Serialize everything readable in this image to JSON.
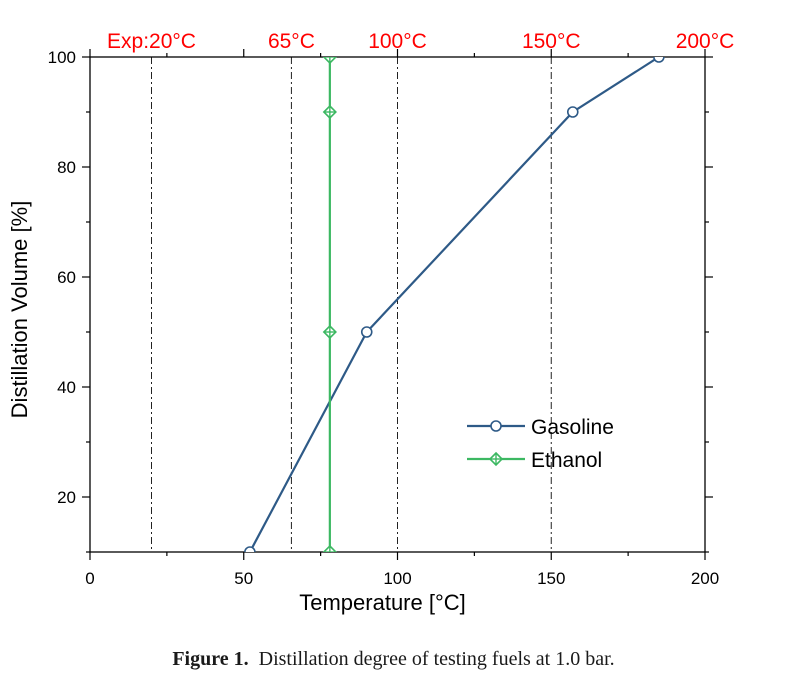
{
  "chart_data": {
    "type": "line",
    "xlabel": "Temperature [°C]",
    "ylabel": "Distillation Volume [%]",
    "xlim": [
      0,
      200
    ],
    "ylim": [
      10,
      100
    ],
    "x_ticks": [
      0,
      50,
      100,
      150,
      200
    ],
    "y_ticks": [
      20,
      40,
      60,
      80,
      100
    ],
    "grid": false,
    "legend_position": "lower-right",
    "reference_lines": [
      {
        "x": 20,
        "label": "Exp:20°C"
      },
      {
        "x": 65.5,
        "label": "65°C"
      },
      {
        "x": 100,
        "label": "100°C"
      },
      {
        "x": 150,
        "label": "150°C"
      },
      {
        "x": 200,
        "label": "200°C"
      }
    ],
    "reference_label_color": "#ff0000",
    "series": [
      {
        "name": "Gasoline",
        "color": "#2e5a87",
        "marker": "circle",
        "x": [
          52,
          90,
          157,
          185
        ],
        "y": [
          10,
          50,
          90,
          100
        ]
      },
      {
        "name": "Ethanol",
        "color": "#3cb862",
        "marker": "diamond-cross",
        "x": [
          78,
          78,
          78,
          78
        ],
        "y": [
          10,
          50,
          90,
          100
        ]
      }
    ]
  },
  "caption": {
    "label": "Figure 1.",
    "text": "Distillation degree of testing fuels at 1.0 bar."
  }
}
